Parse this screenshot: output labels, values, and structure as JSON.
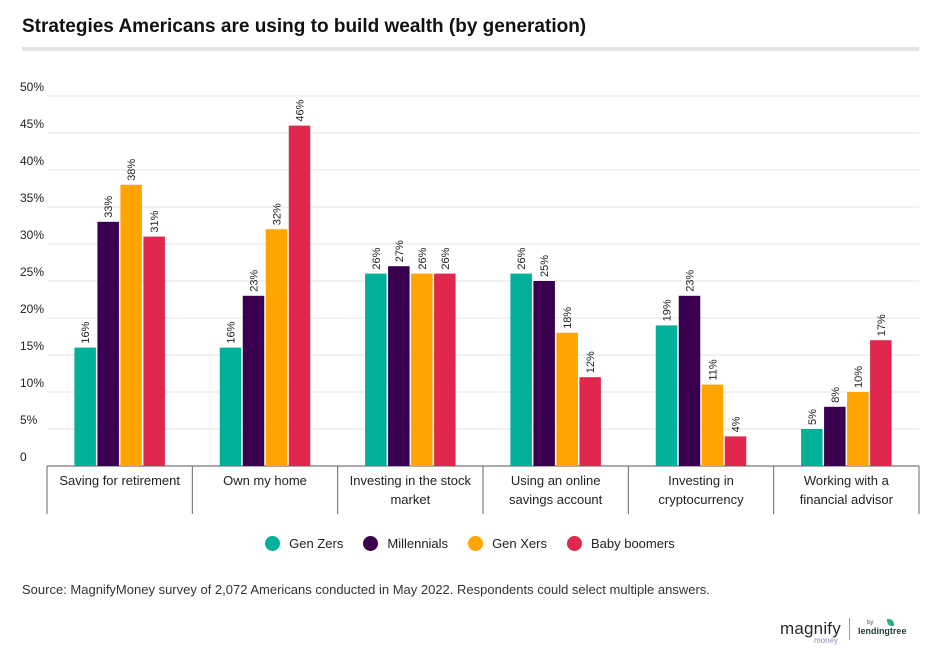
{
  "title": "Strategies Americans are using to build wealth (by generation)",
  "source": "Source: MagnifyMoney survey of 2,072 Americans conducted in May 2022. Respondents could select multiple answers.",
  "logo": {
    "brand": "magnify",
    "sub": "money",
    "by": "by",
    "partner": "lendingtree"
  },
  "colors": {
    "gen_zers": "#00b09b",
    "millennials": "#3a0050",
    "gen_xers": "#ffa400",
    "baby_boomers": "#e0284f"
  },
  "chart_data": {
    "type": "bar",
    "title": "Strategies Americans are using to build wealth (by generation)",
    "categories": [
      [
        "Saving for retirement"
      ],
      [
        "Own my home"
      ],
      [
        "Investing in the stock",
        "market"
      ],
      [
        "Using an online",
        "savings account"
      ],
      [
        "Investing in",
        "cryptocurrency"
      ],
      [
        "Working with a",
        "financial advisor"
      ]
    ],
    "series": [
      {
        "name": "Gen Zers",
        "color": "#00b09b",
        "values": [
          16,
          16,
          26,
          26,
          19,
          5
        ]
      },
      {
        "name": "Millennials",
        "color": "#3a0050",
        "values": [
          33,
          23,
          27,
          25,
          23,
          8
        ]
      },
      {
        "name": "Gen Xers",
        "color": "#ffa400",
        "values": [
          38,
          32,
          26,
          18,
          11,
          10
        ]
      },
      {
        "name": "Baby boomers",
        "color": "#e0284f",
        "values": [
          31,
          46,
          26,
          12,
          4,
          17
        ]
      }
    ],
    "yticks": [
      "0",
      "5%",
      "10%",
      "15%",
      "20%",
      "25%",
      "30%",
      "35%",
      "40%",
      "45%",
      "50%"
    ],
    "ylim": [
      0,
      50
    ],
    "grid": true,
    "legend": "bottom-center",
    "value_suffix": "%"
  }
}
